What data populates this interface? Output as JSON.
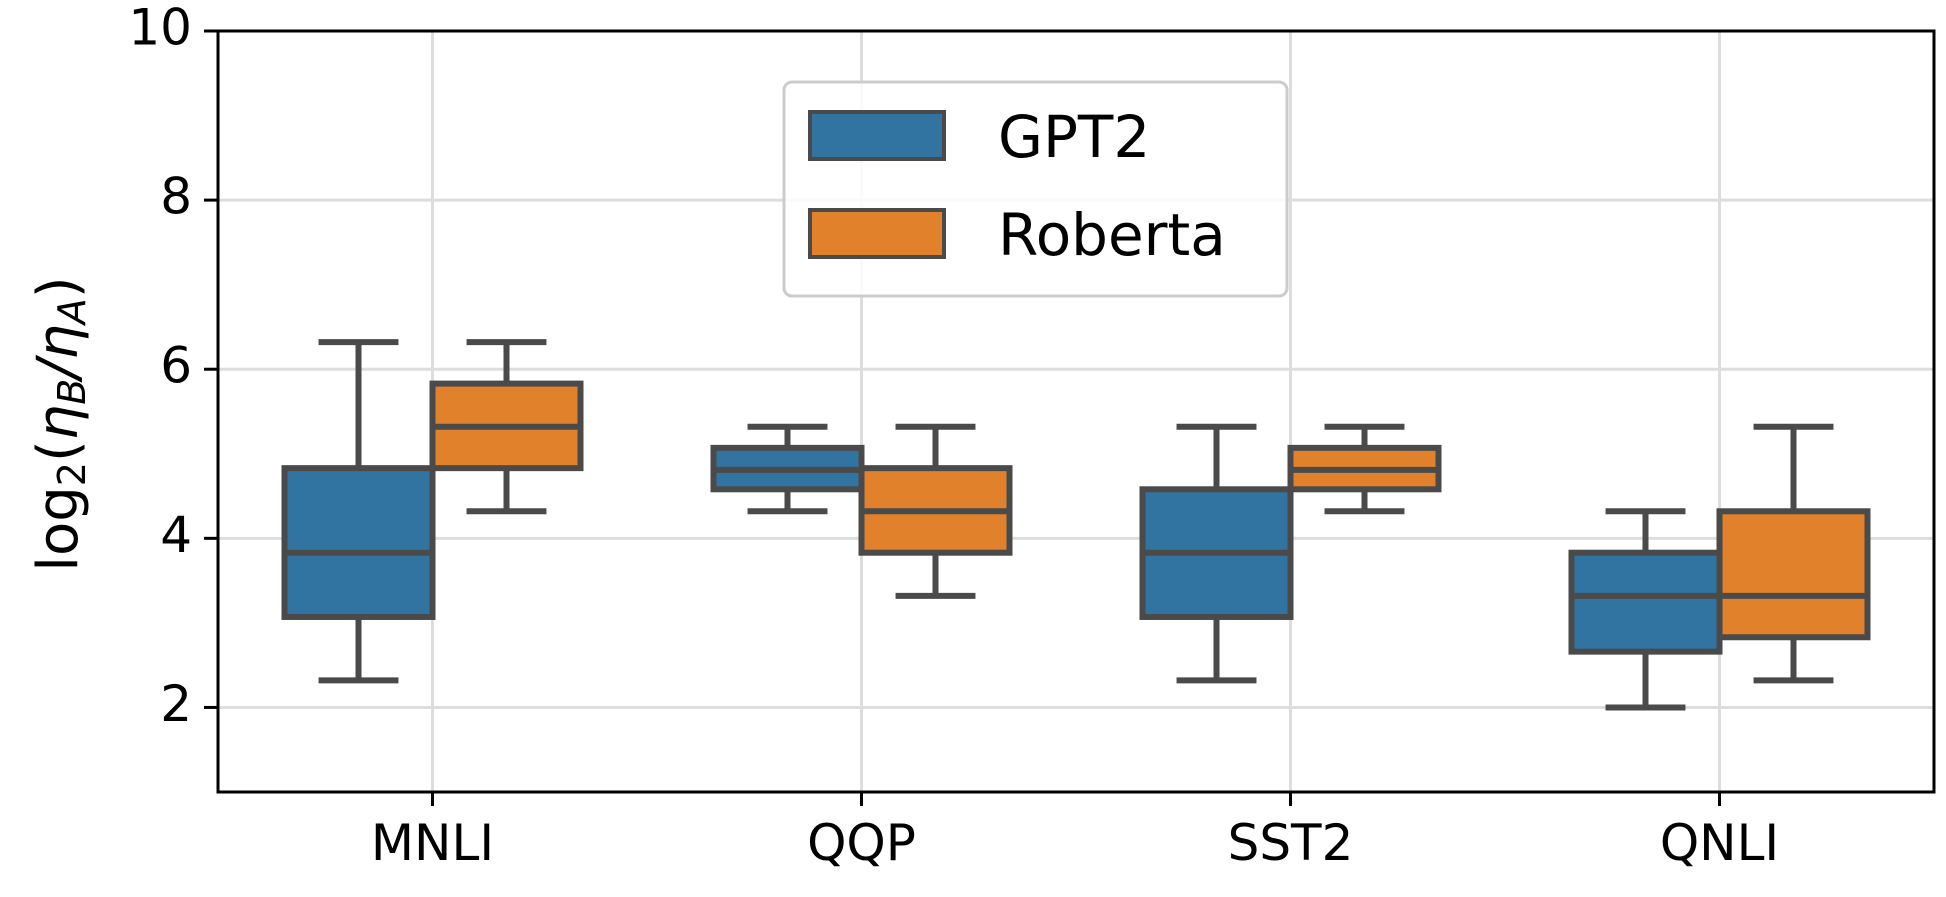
{
  "chart_data": {
    "type": "box",
    "title": "",
    "xlabel": "",
    "ylabel": {
      "prefix": "log",
      "sub": "2",
      "open": "(",
      "eta1": "η",
      "eta1_sub": "B",
      "slash": "/",
      "eta2": "η",
      "eta2_sub": "A",
      "close": ")"
    },
    "ylim": [
      1,
      10
    ],
    "yticks": [
      2,
      4,
      6,
      8,
      10
    ],
    "grid": true,
    "legend_position": "top-center",
    "categories": [
      "MNLI",
      "QQP",
      "SST2",
      "QNLI"
    ],
    "series": [
      {
        "name": "GPT2",
        "color": "#3274a1",
        "boxes": [
          {
            "whisker_low": 2.32,
            "q1": 3.07,
            "median": 3.83,
            "q3": 4.83,
            "whisker_high": 6.32
          },
          {
            "whisker_low": 4.32,
            "q1": 4.58,
            "median": 4.81,
            "q3": 5.07,
            "whisker_high": 5.32
          },
          {
            "whisker_low": 2.32,
            "q1": 3.07,
            "median": 3.83,
            "q3": 4.58,
            "whisker_high": 5.32
          },
          {
            "whisker_low": 2.0,
            "q1": 2.66,
            "median": 3.32,
            "q3": 3.83,
            "whisker_high": 4.32
          }
        ]
      },
      {
        "name": "Roberta",
        "color": "#e1812c",
        "boxes": [
          {
            "whisker_low": 4.32,
            "q1": 4.83,
            "median": 5.32,
            "q3": 5.83,
            "whisker_high": 6.32
          },
          {
            "whisker_low": 3.32,
            "q1": 3.83,
            "median": 4.32,
            "q3": 4.83,
            "whisker_high": 5.32
          },
          {
            "whisker_low": 4.32,
            "q1": 4.58,
            "median": 4.81,
            "q3": 5.07,
            "whisker_high": 5.32
          },
          {
            "whisker_low": 2.32,
            "q1": 2.83,
            "median": 3.32,
            "q3": 4.32,
            "whisker_high": 5.32
          }
        ]
      }
    ]
  }
}
